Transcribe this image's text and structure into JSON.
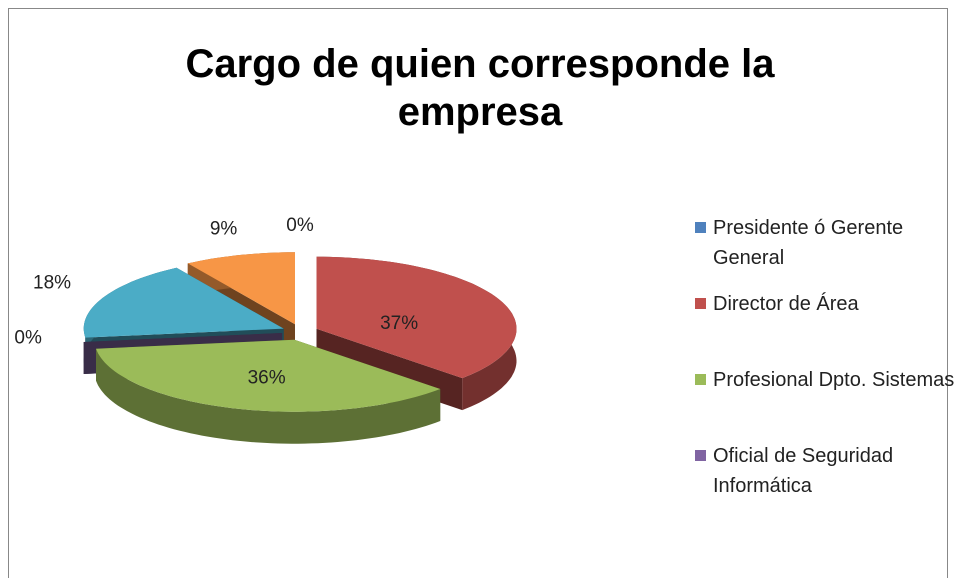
{
  "chart_data": {
    "type": "pie3d",
    "title": "Cargo de quien corresponde la empresa",
    "categories": [
      "Presidente ó Gerente General",
      "Director de Área",
      "Profesional Dpto. Sistemas",
      "Oficial de Seguridad Informática",
      null,
      null
    ],
    "values": [
      0,
      37,
      36,
      0,
      18,
      9
    ],
    "value_labels": [
      "0%",
      "37%",
      "36%",
      "0%",
      "18%",
      "9%"
    ],
    "colors": [
      "#4f81bd",
      "#c0504d",
      "#9bbb59",
      "#8064a2",
      "#4bacc6",
      "#f79646"
    ],
    "legend": "right"
  }
}
